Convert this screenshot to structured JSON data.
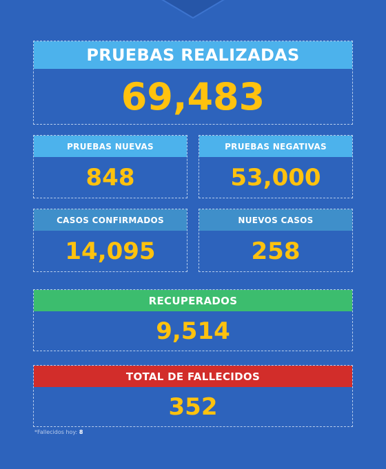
{
  "pruebas_realizadas": {
    "label": "PRUEBAS REALIZADAS",
    "value": "69,483"
  },
  "pruebas_nuevas": {
    "label": "PRUEBAS NUEVAS",
    "value": "848"
  },
  "pruebas_negativas": {
    "label": "PRUEBAS NEGATIVAS",
    "value": "53,000"
  },
  "casos_confirmados": {
    "label": "CASOS CONFIRMADOS",
    "value": "14,095"
  },
  "nuevos_casos": {
    "label": "NUEVOS CASOS",
    "value": "258"
  },
  "recuperados": {
    "label": "RECUPERADOS",
    "value": "9,514"
  },
  "total_fallecidos": {
    "label": "TOTAL DE FALLECIDOS",
    "value": "352"
  },
  "footnote": {
    "text": "*Fallecidos hoy:",
    "value": "8"
  },
  "colors": {
    "background": "#2d63bc",
    "header_light_blue": "#4cb2ec",
    "header_steel_blue": "#3f8fca",
    "header_green": "#3cbd6e",
    "header_red": "#d22d2a",
    "value_yellow": "#ffc20e"
  }
}
